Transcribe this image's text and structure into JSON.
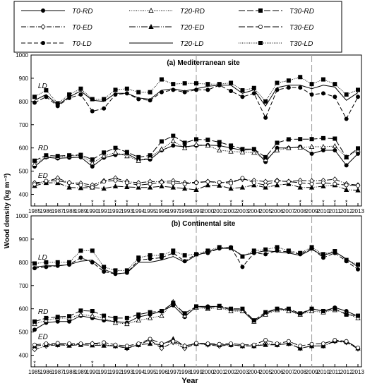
{
  "legend": {
    "entries": [
      {
        "name": "T0-RD",
        "dash": "",
        "marker": "circle",
        "fill": "black"
      },
      {
        "name": "T0-ED",
        "dash": "7,2,1,2",
        "marker": "diamond",
        "fill": "white"
      },
      {
        "name": "T0-LD",
        "dash": "6,3",
        "marker": "circle",
        "fill": "black"
      },
      {
        "name": "T20-RD",
        "dash": "1,1.5",
        "marker": "triangle",
        "fill": "white"
      },
      {
        "name": "T20-ED",
        "dash": "9,2,1,2,1,2",
        "marker": "triangle",
        "fill": "black"
      },
      {
        "name": "T20-LD",
        "dash": "",
        "marker": "none",
        "fill": "black"
      },
      {
        "name": "T30-RD",
        "dash": "9,3",
        "marker": "square",
        "fill": "black"
      },
      {
        "name": "T30-ED",
        "dash": "9,3",
        "marker": "circle",
        "fill": "white"
      },
      {
        "name": "T30-LD",
        "dash": "1,1.5",
        "marker": "square",
        "fill": "black"
      }
    ]
  },
  "chart_data": [
    {
      "type": "line",
      "title": "(a) Mediterranean site",
      "xlabel": "Year",
      "ylabel": "Wood density (kg m⁻³)",
      "ylim": [
        350,
        1000
      ],
      "yticks": [
        400,
        500,
        600,
        700,
        800,
        900,
        1000
      ],
      "x": [
        1985,
        1986,
        1987,
        1988,
        1989,
        1990,
        1991,
        1992,
        1993,
        1994,
        1995,
        1996,
        1997,
        1998,
        1999,
        2000,
        2001,
        2002,
        2003,
        2004,
        2005,
        2006,
        2007,
        2008,
        2009,
        2010,
        2011,
        2012,
        2013
      ],
      "vlines": [
        1999,
        2009
      ],
      "group_labels": [
        {
          "text": "LD",
          "x": 1985.3,
          "y": 858
        },
        {
          "text": "RD",
          "x": 1985.3,
          "y": 590
        },
        {
          "text": "ED",
          "x": 1985.3,
          "y": 472
        }
      ],
      "stars": [
        1990,
        1991,
        1992,
        1993,
        1996,
        1997,
        1999,
        2002,
        2003,
        2008,
        2009,
        2010,
        2011,
        2012
      ],
      "series": [
        {
          "name": "T0-RD",
          "values": [
            520,
            560,
            555,
            558,
            560,
            520,
            558,
            570,
            575,
            548,
            550,
            590,
            610,
            605,
            610,
            612,
            610,
            600,
            590,
            595,
            540,
            600,
            600,
            605,
            575,
            590,
            590,
            525,
            575
          ]
        },
        {
          "name": "T20-RD",
          "values": [
            530,
            563,
            560,
            565,
            568,
            535,
            565,
            580,
            565,
            545,
            560,
            595,
            630,
            600,
            615,
            610,
            590,
            585,
            582,
            580,
            550,
            590,
            600,
            602,
            605,
            605,
            608,
            560,
            590
          ]
        },
        {
          "name": "T30-RD",
          "values": [
            545,
            568,
            565,
            568,
            570,
            550,
            580,
            600,
            582,
            560,
            568,
            628,
            652,
            622,
            637,
            635,
            625,
            610,
            595,
            595,
            560,
            622,
            637,
            638,
            638,
            642,
            640,
            560,
            598
          ]
        },
        {
          "name": "T0-ED",
          "values": [
            450,
            455,
            470,
            450,
            448,
            440,
            458,
            470,
            455,
            450,
            455,
            455,
            458,
            450,
            452,
            455,
            450,
            455,
            465,
            460,
            455,
            460,
            455,
            460,
            458,
            460,
            465,
            445,
            440
          ]
        },
        {
          "name": "T20-ED",
          "values": [
            437,
            450,
            450,
            430,
            428,
            430,
            425,
            435,
            432,
            430,
            430,
            435,
            430,
            425,
            420,
            440,
            438,
            425,
            430,
            440,
            430,
            440,
            445,
            430,
            430,
            435,
            440,
            420,
            418
          ]
        },
        {
          "name": "T30-ED",
          "values": [
            443,
            458,
            458,
            450,
            440,
            430,
            455,
            460,
            450,
            440,
            445,
            452,
            448,
            445,
            450,
            455,
            452,
            448,
            470,
            450,
            440,
            458,
            455,
            450,
            445,
            450,
            445,
            440,
            438
          ]
        },
        {
          "name": "T0-LD",
          "values": [
            795,
            820,
            780,
            815,
            830,
            758,
            770,
            830,
            835,
            810,
            805,
            840,
            850,
            840,
            850,
            850,
            870,
            845,
            820,
            835,
            730,
            850,
            860,
            860,
            830,
            835,
            820,
            725,
            820
          ]
        },
        {
          "name": "T20-LD",
          "values": [
            805,
            830,
            785,
            820,
            845,
            805,
            800,
            835,
            835,
            815,
            810,
            848,
            855,
            845,
            855,
            865,
            870,
            870,
            835,
            850,
            780,
            860,
            870,
            870,
            855,
            870,
            862,
            805,
            838
          ]
        },
        {
          "name": "T30-LD",
          "values": [
            820,
            848,
            792,
            830,
            855,
            810,
            810,
            850,
            855,
            840,
            840,
            895,
            875,
            878,
            878,
            875,
            875,
            880,
            848,
            858,
            800,
            880,
            890,
            905,
            875,
            895,
            875,
            830,
            850
          ]
        }
      ]
    },
    {
      "type": "line",
      "title": "(b) Continental site",
      "xlabel": "Year",
      "ylabel": "Wood density (kg m⁻³)",
      "ylim": [
        350,
        1000
      ],
      "yticks": [
        400,
        500,
        600,
        700,
        800,
        900,
        1000
      ],
      "x": [
        1985,
        1986,
        1987,
        1988,
        1989,
        1990,
        1991,
        1992,
        1993,
        1994,
        1995,
        1996,
        1997,
        1998,
        1999,
        2000,
        2001,
        2002,
        2003,
        2004,
        2005,
        2006,
        2007,
        2008,
        2009,
        2010,
        2011,
        2012,
        2013
      ],
      "vlines": [
        1999,
        2009
      ],
      "group_labels": [
        {
          "text": "LD",
          "x": 1985.3,
          "y": 812
        },
        {
          "text": "RD",
          "x": 1985.3,
          "y": 578
        },
        {
          "text": "ED",
          "x": 1985.3,
          "y": 470
        }
      ],
      "stars": [
        1985,
        1990
      ],
      "series": [
        {
          "name": "T0-RD",
          "values": [
            510,
            540,
            545,
            545,
            570,
            560,
            550,
            545,
            540,
            565,
            575,
            590,
            615,
            565,
            610,
            610,
            610,
            595,
            595,
            545,
            580,
            600,
            595,
            575,
            600,
            590,
            605,
            590,
            568
          ]
        },
        {
          "name": "T20-RD",
          "values": [
            535,
            550,
            560,
            560,
            575,
            570,
            560,
            540,
            535,
            550,
            560,
            570,
            630,
            570,
            605,
            600,
            605,
            590,
            590,
            545,
            575,
            595,
            590,
            575,
            590,
            585,
            595,
            580,
            560
          ]
        },
        {
          "name": "T30-RD",
          "values": [
            545,
            560,
            565,
            568,
            592,
            590,
            570,
            560,
            560,
            575,
            585,
            590,
            625,
            580,
            610,
            605,
            612,
            600,
            600,
            550,
            585,
            600,
            600,
            580,
            600,
            590,
            600,
            575,
            570
          ]
        },
        {
          "name": "T0-ED",
          "values": [
            425,
            440,
            445,
            445,
            448,
            450,
            445,
            440,
            430,
            445,
            465,
            430,
            455,
            430,
            450,
            445,
            440,
            445,
            440,
            440,
            450,
            445,
            450,
            430,
            440,
            440,
            460,
            455,
            428
          ]
        },
        {
          "name": "T20-ED",
          "values": [
            440,
            445,
            445,
            442,
            445,
            443,
            442,
            440,
            432,
            445,
            450,
            445,
            470,
            440,
            450,
            448,
            445,
            445,
            440,
            440,
            445,
            445,
            450,
            430,
            440,
            440,
            462,
            458,
            430
          ]
        },
        {
          "name": "T30-ED",
          "values": [
            445,
            450,
            452,
            450,
            450,
            450,
            455,
            445,
            440,
            450,
            470,
            450,
            460,
            440,
            452,
            450,
            448,
            450,
            445,
            445,
            465,
            450,
            460,
            440,
            448,
            450,
            465,
            460,
            432
          ]
        },
        {
          "name": "T0-LD",
          "values": [
            775,
            780,
            785,
            790,
            820,
            800,
            760,
            750,
            755,
            810,
            815,
            820,
            840,
            805,
            835,
            840,
            860,
            865,
            780,
            840,
            835,
            850,
            845,
            835,
            860,
            820,
            840,
            805,
            770
          ]
        },
        {
          "name": "T20-LD",
          "values": [
            780,
            785,
            785,
            790,
            805,
            810,
            770,
            750,
            755,
            800,
            800,
            810,
            825,
            800,
            830,
            845,
            860,
            860,
            830,
            840,
            850,
            845,
            840,
            830,
            855,
            830,
            845,
            815,
            780
          ]
        },
        {
          "name": "T30-LD",
          "values": [
            795,
            800,
            800,
            800,
            850,
            850,
            780,
            765,
            765,
            820,
            830,
            830,
            850,
            830,
            835,
            850,
            865,
            862,
            825,
            850,
            855,
            865,
            850,
            840,
            865,
            835,
            848,
            810,
            790
          ]
        }
      ]
    }
  ]
}
